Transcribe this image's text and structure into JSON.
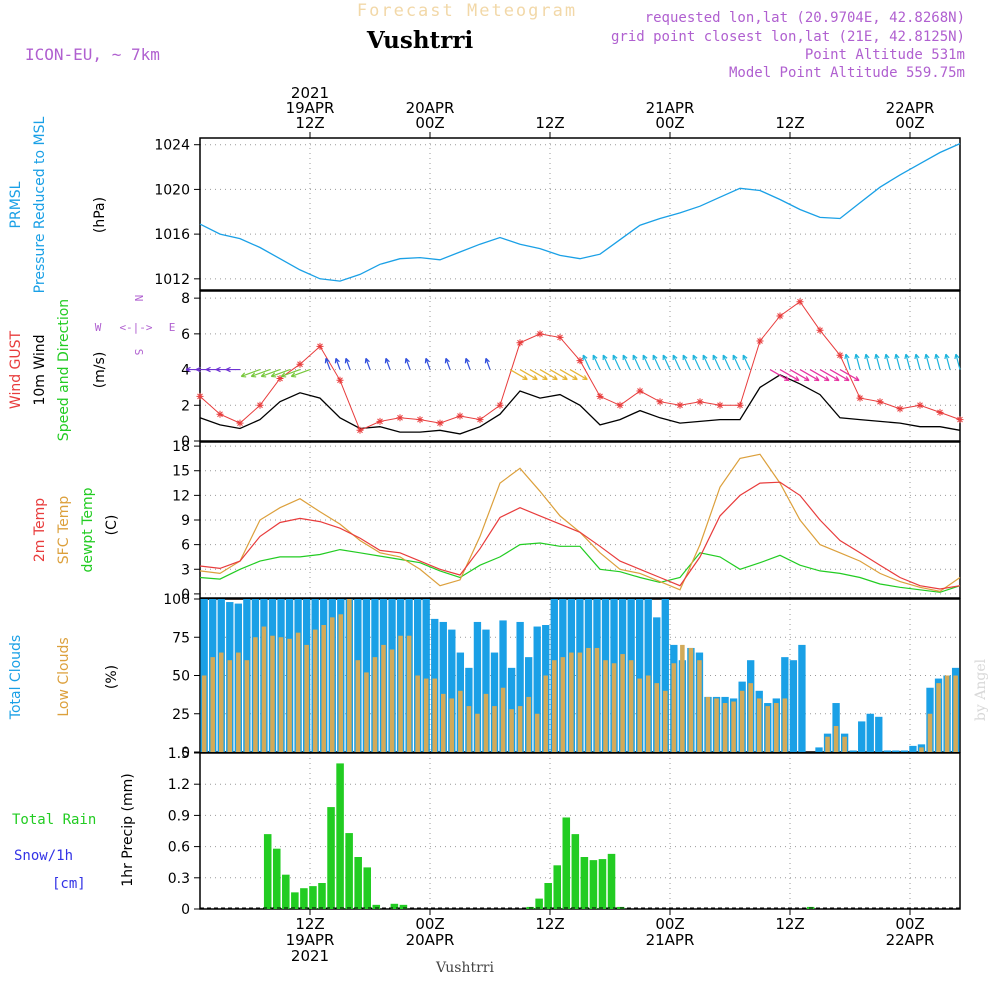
{
  "header": {
    "title": "Forecast Meteogram",
    "station": "Vushtrri",
    "model": "ICON-EU, ~ 7km",
    "requested": "requested lon,lat (20.9704E, 42.8268N)",
    "gridpoint": "grid point closest lon,lat (21E, 42.8125N)",
    "point_alt": "Point Altitude 531m",
    "model_alt": "Model Point Altitude 559.75m",
    "footer_station": "Vushtrri",
    "watermark": "by Angel"
  },
  "colors": {
    "pressure": "#1aa0e6",
    "gust": "#e83c3c",
    "wind": "#000000",
    "green": "#22cc22",
    "sfc": "#dca03c",
    "total_cloud": "#1aa0e6",
    "low_cloud": "#d2aa5a",
    "purple": "#b060d0",
    "rain": "#22cc22",
    "snow": "#3232e6"
  },
  "time_axis": {
    "top_labels": [
      {
        "hour": 12,
        "lines": [
          "2021",
          "19APR",
          "12Z"
        ]
      },
      {
        "hour": 24,
        "lines": [
          "20APR",
          "00Z"
        ]
      },
      {
        "hour": 36,
        "lines": [
          "12Z"
        ]
      },
      {
        "hour": 48,
        "lines": [
          "21APR",
          "00Z"
        ]
      },
      {
        "hour": 60,
        "lines": [
          "12Z"
        ]
      },
      {
        "hour": 72,
        "lines": [
          "22APR",
          "00Z"
        ]
      }
    ],
    "bottom_labels": [
      {
        "hour": 12,
        "lines": [
          "12Z",
          "19APR",
          "2021"
        ]
      },
      {
        "hour": 24,
        "lines": [
          "00Z",
          "20APR"
        ]
      },
      {
        "hour": 36,
        "lines": [
          "12Z"
        ]
      },
      {
        "hour": 48,
        "lines": [
          "00Z",
          "21APR"
        ]
      },
      {
        "hour": 60,
        "lines": [
          "12Z"
        ]
      },
      {
        "hour": 72,
        "lines": [
          "00Z",
          "22APR"
        ]
      }
    ]
  },
  "panels": {
    "pressure": {
      "label1": "PRMSL",
      "label2": "Pressure Reduced to MSL",
      "unit": "(hPa)",
      "ticks": [
        "1012",
        "1016",
        "1020",
        "1024"
      ]
    },
    "wind": {
      "label_gust": "Wind GUST",
      "label_wind": "10m Wind",
      "label_dir": "Speed and Direction",
      "unit": "(m/s)",
      "ticks": [
        "0",
        "2",
        "4",
        "6",
        "8"
      ],
      "compass_n": "N",
      "compass_s": "S",
      "compass_w": "W",
      "compass_e": "E",
      "compass_arrow": "<-|->"
    },
    "temp": {
      "label_t2m": "2m Temp",
      "label_sfc": "SFC Temp",
      "label_dew": "dewpt Temp",
      "unit": "(C)",
      "ticks": [
        "0",
        "3",
        "6",
        "9",
        "12",
        "15",
        "18"
      ]
    },
    "cloud": {
      "label_total": "Total Clouds",
      "label_low": "Low Clouds",
      "unit": "(%)",
      "ticks": [
        "0",
        "25",
        "50",
        "75",
        "100"
      ]
    },
    "precip": {
      "label_rain": "Total Rain",
      "label_snow": "Snow/1h",
      "label_cm": "[cm]",
      "unit": "1hr Precip (mm)",
      "ticks": [
        "0",
        "0.3",
        "0.6",
        "0.9",
        "1.2",
        "1.5"
      ]
    }
  },
  "chart_data": {
    "type": "line",
    "x_unit": "hours since 2021-04-19 00Z",
    "xlim": [
      1,
      77
    ],
    "pressure": {
      "ylim": [
        1011,
        1024.6
      ],
      "hours": [
        1,
        3,
        5,
        7,
        9,
        11,
        13,
        15,
        17,
        19,
        21,
        23,
        25,
        27,
        29,
        31,
        33,
        35,
        37,
        39,
        41,
        43,
        45,
        47,
        49,
        51,
        53,
        55,
        57,
        59,
        61,
        63,
        65,
        67,
        69,
        71,
        73,
        75,
        77
      ],
      "values": [
        1016.9,
        1016.0,
        1015.6,
        1014.8,
        1013.8,
        1012.8,
        1012.0,
        1011.8,
        1012.4,
        1013.3,
        1013.8,
        1013.9,
        1013.7,
        1014.4,
        1015.1,
        1015.7,
        1015.1,
        1014.7,
        1014.1,
        1013.8,
        1014.2,
        1015.5,
        1016.8,
        1017.4,
        1017.9,
        1018.5,
        1019.3,
        1020.1,
        1019.9,
        1019.1,
        1018.2,
        1017.5,
        1017.4,
        1018.8,
        1020.2,
        1021.3,
        1022.3,
        1023.3,
        1024.1
      ]
    },
    "gust": {
      "ylim": [
        0,
        8.4
      ],
      "hours": [
        1,
        3,
        5,
        7,
        9,
        11,
        13,
        15,
        17,
        19,
        21,
        23,
        25,
        27,
        29,
        31,
        33,
        35,
        37,
        39,
        41,
        43,
        45,
        47,
        49,
        51,
        53,
        55,
        57,
        59,
        61,
        63,
        65,
        67,
        69,
        71,
        73,
        75,
        77
      ],
      "values": [
        2.5,
        1.5,
        1.0,
        2.0,
        3.5,
        4.3,
        5.3,
        3.4,
        0.6,
        1.1,
        1.3,
        1.2,
        1.0,
        1.4,
        1.2,
        2.0,
        5.5,
        6.0,
        5.8,
        4.5,
        2.5,
        2.0,
        2.8,
        2.2,
        2.0,
        2.2,
        2.0,
        2.0,
        5.6,
        7.0,
        7.8,
        6.2,
        4.8,
        2.4,
        2.2,
        1.8,
        2.0,
        1.6,
        1.2
      ]
    },
    "wind": {
      "hours": [
        1,
        3,
        5,
        7,
        9,
        11,
        13,
        15,
        17,
        19,
        21,
        23,
        25,
        27,
        29,
        31,
        33,
        35,
        37,
        39,
        41,
        43,
        45,
        47,
        49,
        51,
        53,
        55,
        57,
        59,
        61,
        63,
        65,
        67,
        69,
        71,
        73,
        75,
        77
      ],
      "values": [
        1.3,
        0.9,
        0.7,
        1.2,
        2.2,
        2.7,
        2.4,
        1.3,
        0.7,
        0.8,
        0.5,
        0.5,
        0.6,
        0.4,
        0.8,
        1.5,
        2.8,
        2.4,
        2.6,
        2.0,
        0.9,
        1.2,
        1.7,
        1.3,
        1.0,
        1.1,
        1.2,
        1.2,
        3.0,
        3.7,
        3.2,
        2.6,
        1.3,
        1.2,
        1.1,
        1.0,
        0.8,
        0.8,
        0.6
      ]
    },
    "wind_arrow_level": 4,
    "wind_arrows": [
      {
        "hours": [
          1,
          2,
          3,
          4,
          5
        ],
        "angle": 180,
        "len": 14,
        "color": "#6e32d2"
      },
      {
        "hours": [
          7,
          8,
          9,
          10,
          11,
          12
        ],
        "angle": 200,
        "len": 20,
        "color": "#78c83c"
      },
      {
        "hours": [
          14,
          15,
          16,
          18,
          20,
          22,
          24,
          26,
          28,
          30
        ],
        "angle": 110,
        "len": 12,
        "color": "#3250dc"
      },
      {
        "hours": [
          32,
          33,
          34,
          35,
          36,
          37,
          38
        ],
        "angle": 330,
        "len": 20,
        "color": "#e6b432"
      },
      {
        "hours": [
          40,
          41,
          42,
          43,
          44,
          45,
          46,
          47,
          48,
          49,
          50,
          51,
          52,
          53,
          54,
          55,
          56
        ],
        "angle": 115,
        "len": 16,
        "color": "#1eb4dc"
      },
      {
        "hours": [
          58,
          59,
          60,
          61,
          62,
          63,
          64,
          65
        ],
        "angle": 330,
        "len": 22,
        "color": "#e632a0"
      },
      {
        "hours": [
          66,
          67,
          68,
          69,
          70,
          71,
          72,
          73,
          74,
          75,
          76,
          77
        ],
        "angle": 105,
        "len": 16,
        "color": "#1eb4dc"
      }
    ],
    "temp": {
      "ylim": [
        -0.5,
        18.5
      ],
      "hours": [
        1,
        3,
        5,
        7,
        9,
        11,
        13,
        15,
        17,
        19,
        21,
        23,
        25,
        27,
        29,
        31,
        33,
        35,
        37,
        39,
        41,
        43,
        45,
        47,
        49,
        51,
        53,
        55,
        57,
        59,
        61,
        63,
        65,
        67,
        69,
        71,
        73,
        75,
        77
      ],
      "t2m": [
        3.4,
        3.1,
        4.0,
        7.0,
        8.7,
        9.2,
        8.8,
        8.0,
        6.8,
        5.3,
        5.0,
        4.0,
        3.0,
        2.3,
        5.5,
        9.3,
        10.5,
        9.5,
        8.5,
        7.5,
        5.8,
        4.0,
        3.0,
        2.0,
        1.0,
        4.5,
        9.5,
        12.0,
        13.5,
        13.6,
        12.0,
        9.0,
        6.5,
        5.0,
        3.5,
        2.0,
        1.0,
        0.6,
        1.0
      ],
      "sfc": [
        2.8,
        2.5,
        4.0,
        9.0,
        10.5,
        11.6,
        10.0,
        8.5,
        6.5,
        5.0,
        4.5,
        3.0,
        1.0,
        1.7,
        7.0,
        13.5,
        15.3,
        12.5,
        9.5,
        7.5,
        5.0,
        3.0,
        2.5,
        1.5,
        0.5,
        6.0,
        13.0,
        16.5,
        17.0,
        13.5,
        9.0,
        6.0,
        5.0,
        4.0,
        2.5,
        1.5,
        0.8,
        0.3,
        2.0
      ],
      "dew": [
        2.0,
        1.8,
        3.0,
        4.0,
        4.5,
        4.5,
        4.8,
        5.4,
        5.0,
        4.6,
        4.2,
        3.8,
        2.8,
        2.0,
        3.5,
        4.5,
        6.0,
        6.2,
        5.8,
        5.8,
        3.0,
        2.7,
        2.0,
        1.4,
        2.0,
        5.0,
        4.5,
        3.0,
        3.8,
        4.7,
        3.5,
        2.8,
        2.5,
        2.0,
        1.2,
        0.8,
        0.5,
        0.2,
        1.0
      ]
    },
    "cloud": {
      "ylim": [
        0,
        100
      ],
      "total": [
        100,
        100,
        100,
        98,
        97,
        100,
        100,
        100,
        100,
        100,
        100,
        100,
        100,
        100,
        100,
        100,
        100,
        100,
        100,
        100,
        100,
        100,
        100,
        100,
        100,
        100,
        100,
        87,
        85,
        80,
        65,
        55,
        85,
        80,
        65,
        86,
        55,
        85,
        62,
        82,
        83,
        100,
        100,
        100,
        100,
        100,
        100,
        100,
        100,
        100,
        100,
        100,
        100,
        88,
        100,
        70,
        60,
        68,
        65,
        36,
        36,
        36,
        35,
        46,
        60,
        40,
        32,
        35,
        62,
        60,
        70,
        0,
        3,
        12,
        32,
        12,
        1,
        20,
        25,
        23,
        1,
        1,
        1,
        4,
        5,
        42,
        48,
        50,
        55
      ],
      "low": [
        50,
        62,
        65,
        60,
        65,
        60,
        75,
        82,
        76,
        75,
        74,
        78,
        70,
        80,
        83,
        88,
        90,
        100,
        60,
        52,
        62,
        70,
        67,
        76,
        76,
        50,
        48,
        48,
        38,
        35,
        40,
        30,
        25,
        38,
        30,
        42,
        28,
        30,
        36,
        25,
        50,
        60,
        62,
        65,
        65,
        68,
        68,
        60,
        58,
        64,
        60,
        48,
        50,
        45,
        40,
        58,
        70,
        68,
        60,
        36,
        35,
        32,
        33,
        40,
        45,
        35,
        30,
        32,
        35,
        0,
        0,
        0,
        0,
        10,
        17,
        10,
        0,
        0,
        0,
        0,
        0,
        0,
        0,
        0,
        3,
        25,
        45,
        50,
        50
      ]
    },
    "precip": {
      "ylim": [
        0,
        1.5
      ],
      "rain": [
        0,
        0,
        0,
        0,
        0,
        0,
        0,
        0.72,
        0.58,
        0.33,
        0.16,
        0.2,
        0.22,
        0.25,
        0.98,
        1.4,
        0.73,
        0.5,
        0.4,
        0.04,
        0,
        0.05,
        0.04,
        0,
        0,
        0,
        0,
        0,
        0,
        0,
        0,
        0,
        0,
        0,
        0,
        0,
        0.02,
        0.1,
        0.25,
        0.42,
        0.88,
        0.72,
        0.5,
        0.47,
        0.48,
        0.53,
        0.02,
        0,
        0,
        0,
        0,
        0,
        0,
        0,
        0,
        0,
        0,
        0,
        0,
        0,
        0,
        0,
        0,
        0,
        0,
        0,
        0,
        0.02,
        0,
        0,
        0,
        0,
        0,
        0,
        0,
        0,
        0,
        0,
        0,
        0,
        0,
        0,
        0,
        0
      ]
    }
  }
}
